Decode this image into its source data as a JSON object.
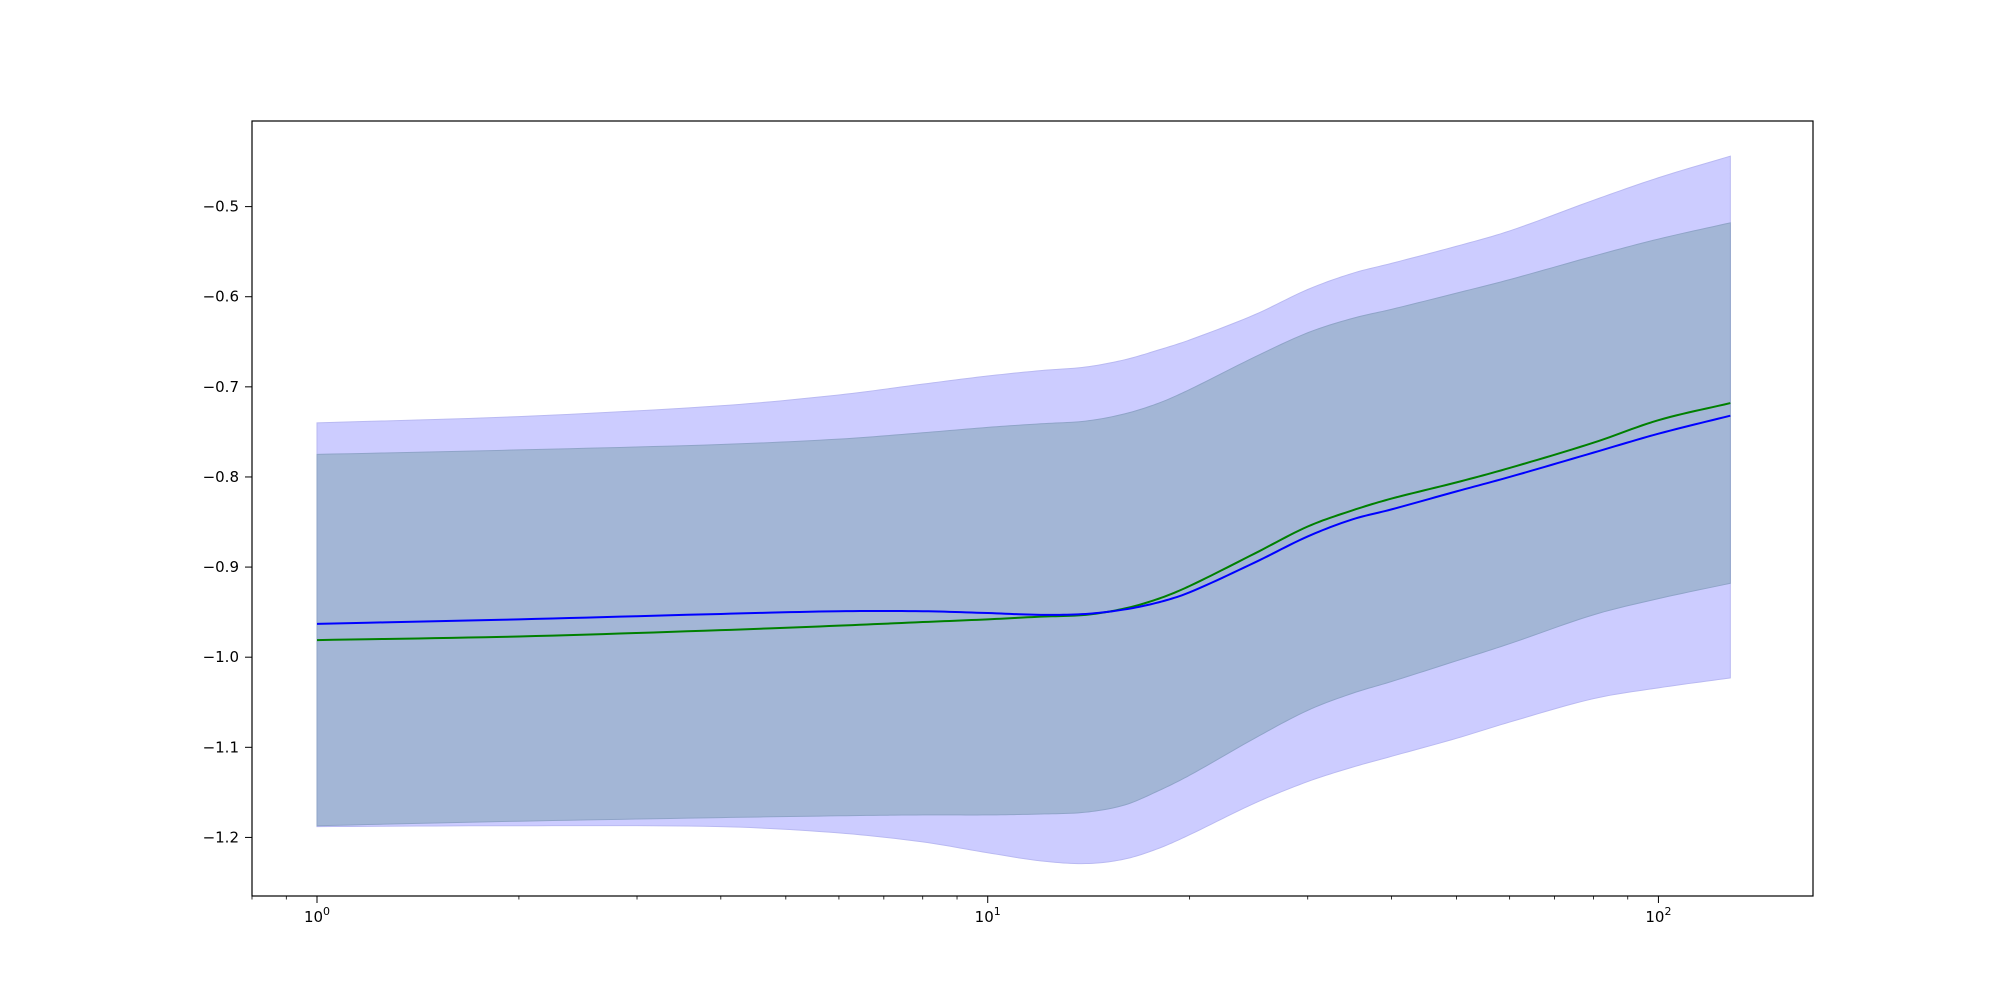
{
  "chart_data": {
    "type": "line",
    "x_scale": "log",
    "xlim": [
      0.8,
      170
    ],
    "ylim": [
      -1.265,
      -0.405
    ],
    "title": "",
    "xlabel": "",
    "ylabel": "",
    "grid": false,
    "x_ticks": [
      {
        "value": 1,
        "base": "10",
        "exp": "0"
      },
      {
        "value": 10,
        "base": "10",
        "exp": "1"
      },
      {
        "value": 100,
        "base": "10",
        "exp": "2"
      }
    ],
    "y_ticks": [
      {
        "value": -0.5,
        "label": "−0.5"
      },
      {
        "value": -0.6,
        "label": "−0.6"
      },
      {
        "value": -0.7,
        "label": "−0.7"
      },
      {
        "value": -0.8,
        "label": "−0.8"
      },
      {
        "value": -0.9,
        "label": "−0.9"
      },
      {
        "value": -1.0,
        "label": "−1.0"
      },
      {
        "value": -1.1,
        "label": "−1.1"
      },
      {
        "value": -1.2,
        "label": "−1.2"
      }
    ],
    "x": [
      1,
      2,
      4,
      6,
      8,
      10,
      12,
      14,
      16,
      18,
      20,
      25,
      30,
      35,
      40,
      50,
      60,
      80,
      100,
      128
    ],
    "bands": [
      {
        "color": "#ccccff",
        "lower": [
          -1.188,
          -1.187,
          -1.188,
          -1.195,
          -1.205,
          -1.217,
          -1.226,
          -1.229,
          -1.224,
          -1.212,
          -1.197,
          -1.162,
          -1.138,
          -1.122,
          -1.11,
          -1.09,
          -1.072,
          -1.046,
          -1.034,
          -1.023
        ],
        "upper": [
          -0.74,
          -0.733,
          -0.721,
          -0.709,
          -0.697,
          -0.688,
          -0.682,
          -0.678,
          -0.67,
          -0.659,
          -0.648,
          -0.62,
          -0.592,
          -0.574,
          -0.563,
          -0.544,
          -0.527,
          -0.493,
          -0.468,
          -0.444
        ]
      },
      {
        "color": "#a3b6d6",
        "lower": [
          -1.187,
          -1.182,
          -1.178,
          -1.176,
          -1.175,
          -1.175,
          -1.174,
          -1.172,
          -1.164,
          -1.148,
          -1.131,
          -1.09,
          -1.059,
          -1.04,
          -1.027,
          -1.004,
          -0.985,
          -0.953,
          -0.935,
          -0.918
        ],
        "upper": [
          -0.775,
          -0.77,
          -0.764,
          -0.758,
          -0.751,
          -0.745,
          -0.741,
          -0.738,
          -0.73,
          -0.718,
          -0.703,
          -0.667,
          -0.64,
          -0.624,
          -0.614,
          -0.596,
          -0.581,
          -0.555,
          -0.536,
          -0.518
        ]
      }
    ],
    "series": [
      {
        "color": "#008000",
        "values": [
          -0.981,
          -0.977,
          -0.97,
          -0.965,
          -0.961,
          -0.958,
          -0.955,
          -0.953,
          -0.946,
          -0.935,
          -0.921,
          -0.885,
          -0.855,
          -0.837,
          -0.824,
          -0.806,
          -0.79,
          -0.762,
          -0.737,
          -0.718
        ]
      },
      {
        "color": "#0000ff",
        "values": [
          -0.963,
          -0.958,
          -0.952,
          -0.949,
          -0.949,
          -0.951,
          -0.953,
          -0.952,
          -0.947,
          -0.939,
          -0.928,
          -0.895,
          -0.866,
          -0.847,
          -0.836,
          -0.816,
          -0.8,
          -0.773,
          -0.752,
          -0.732
        ]
      }
    ]
  }
}
